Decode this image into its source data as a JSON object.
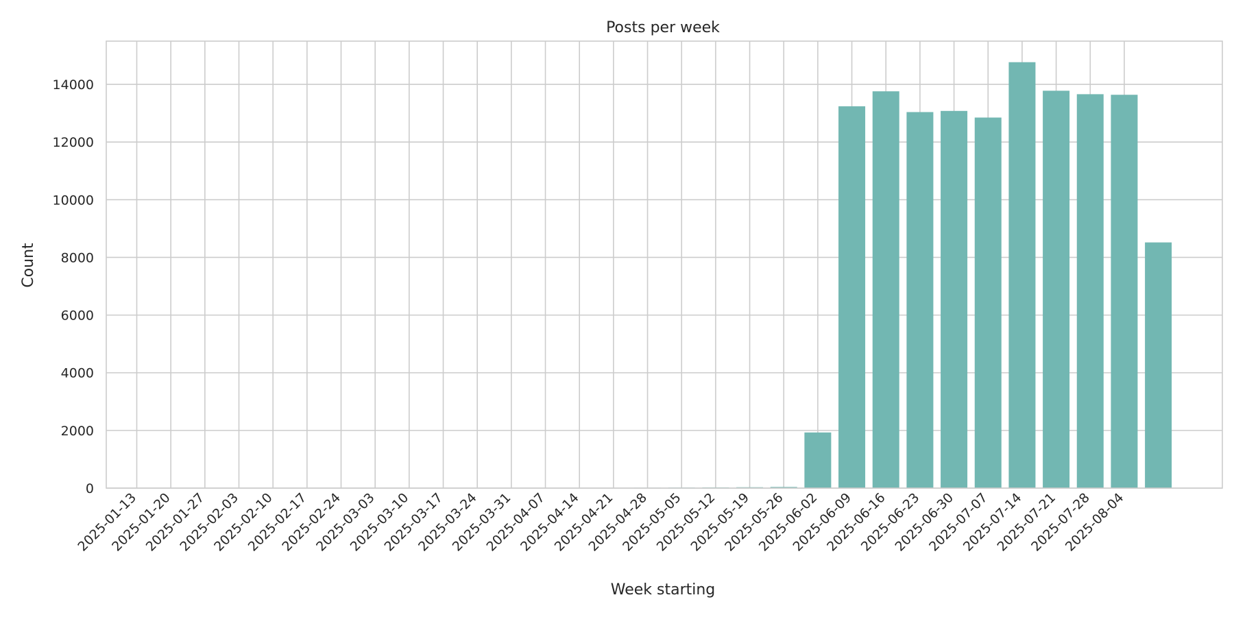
{
  "chart_data": {
    "type": "bar",
    "title": "Posts per week",
    "xlabel": "Week starting",
    "ylabel": "Count",
    "ylim": [
      0,
      15500
    ],
    "yticks": [
      0,
      2000,
      4000,
      6000,
      8000,
      10000,
      12000,
      14000
    ],
    "grid": true,
    "bar_color": "#72b7b2",
    "categories": [
      "2025-01-13",
      "2025-01-20",
      "2025-01-27",
      "2025-02-03",
      "2025-02-10",
      "2025-02-17",
      "2025-02-24",
      "2025-03-03",
      "2025-03-10",
      "2025-03-17",
      "2025-03-24",
      "2025-03-31",
      "2025-04-07",
      "2025-04-14",
      "2025-04-21",
      "2025-04-28",
      "2025-05-05",
      "2025-05-12",
      "2025-05-19",
      "2025-05-26",
      "2025-06-02",
      "2025-06-09",
      "2025-06-16",
      "2025-06-23",
      "2025-06-30",
      "2025-07-07",
      "2025-07-14",
      "2025-07-21",
      "2025-07-28",
      "2025-08-04"
    ],
    "values": [
      1,
      2,
      2,
      2,
      3,
      3,
      5,
      4,
      3,
      5,
      5,
      6,
      8,
      10,
      12,
      15,
      20,
      25,
      30,
      40,
      1930,
      13240,
      13760,
      13040,
      13080,
      12850,
      14770,
      13780,
      13660,
      13640
    ],
    "extra_bar_value": 8520
  }
}
